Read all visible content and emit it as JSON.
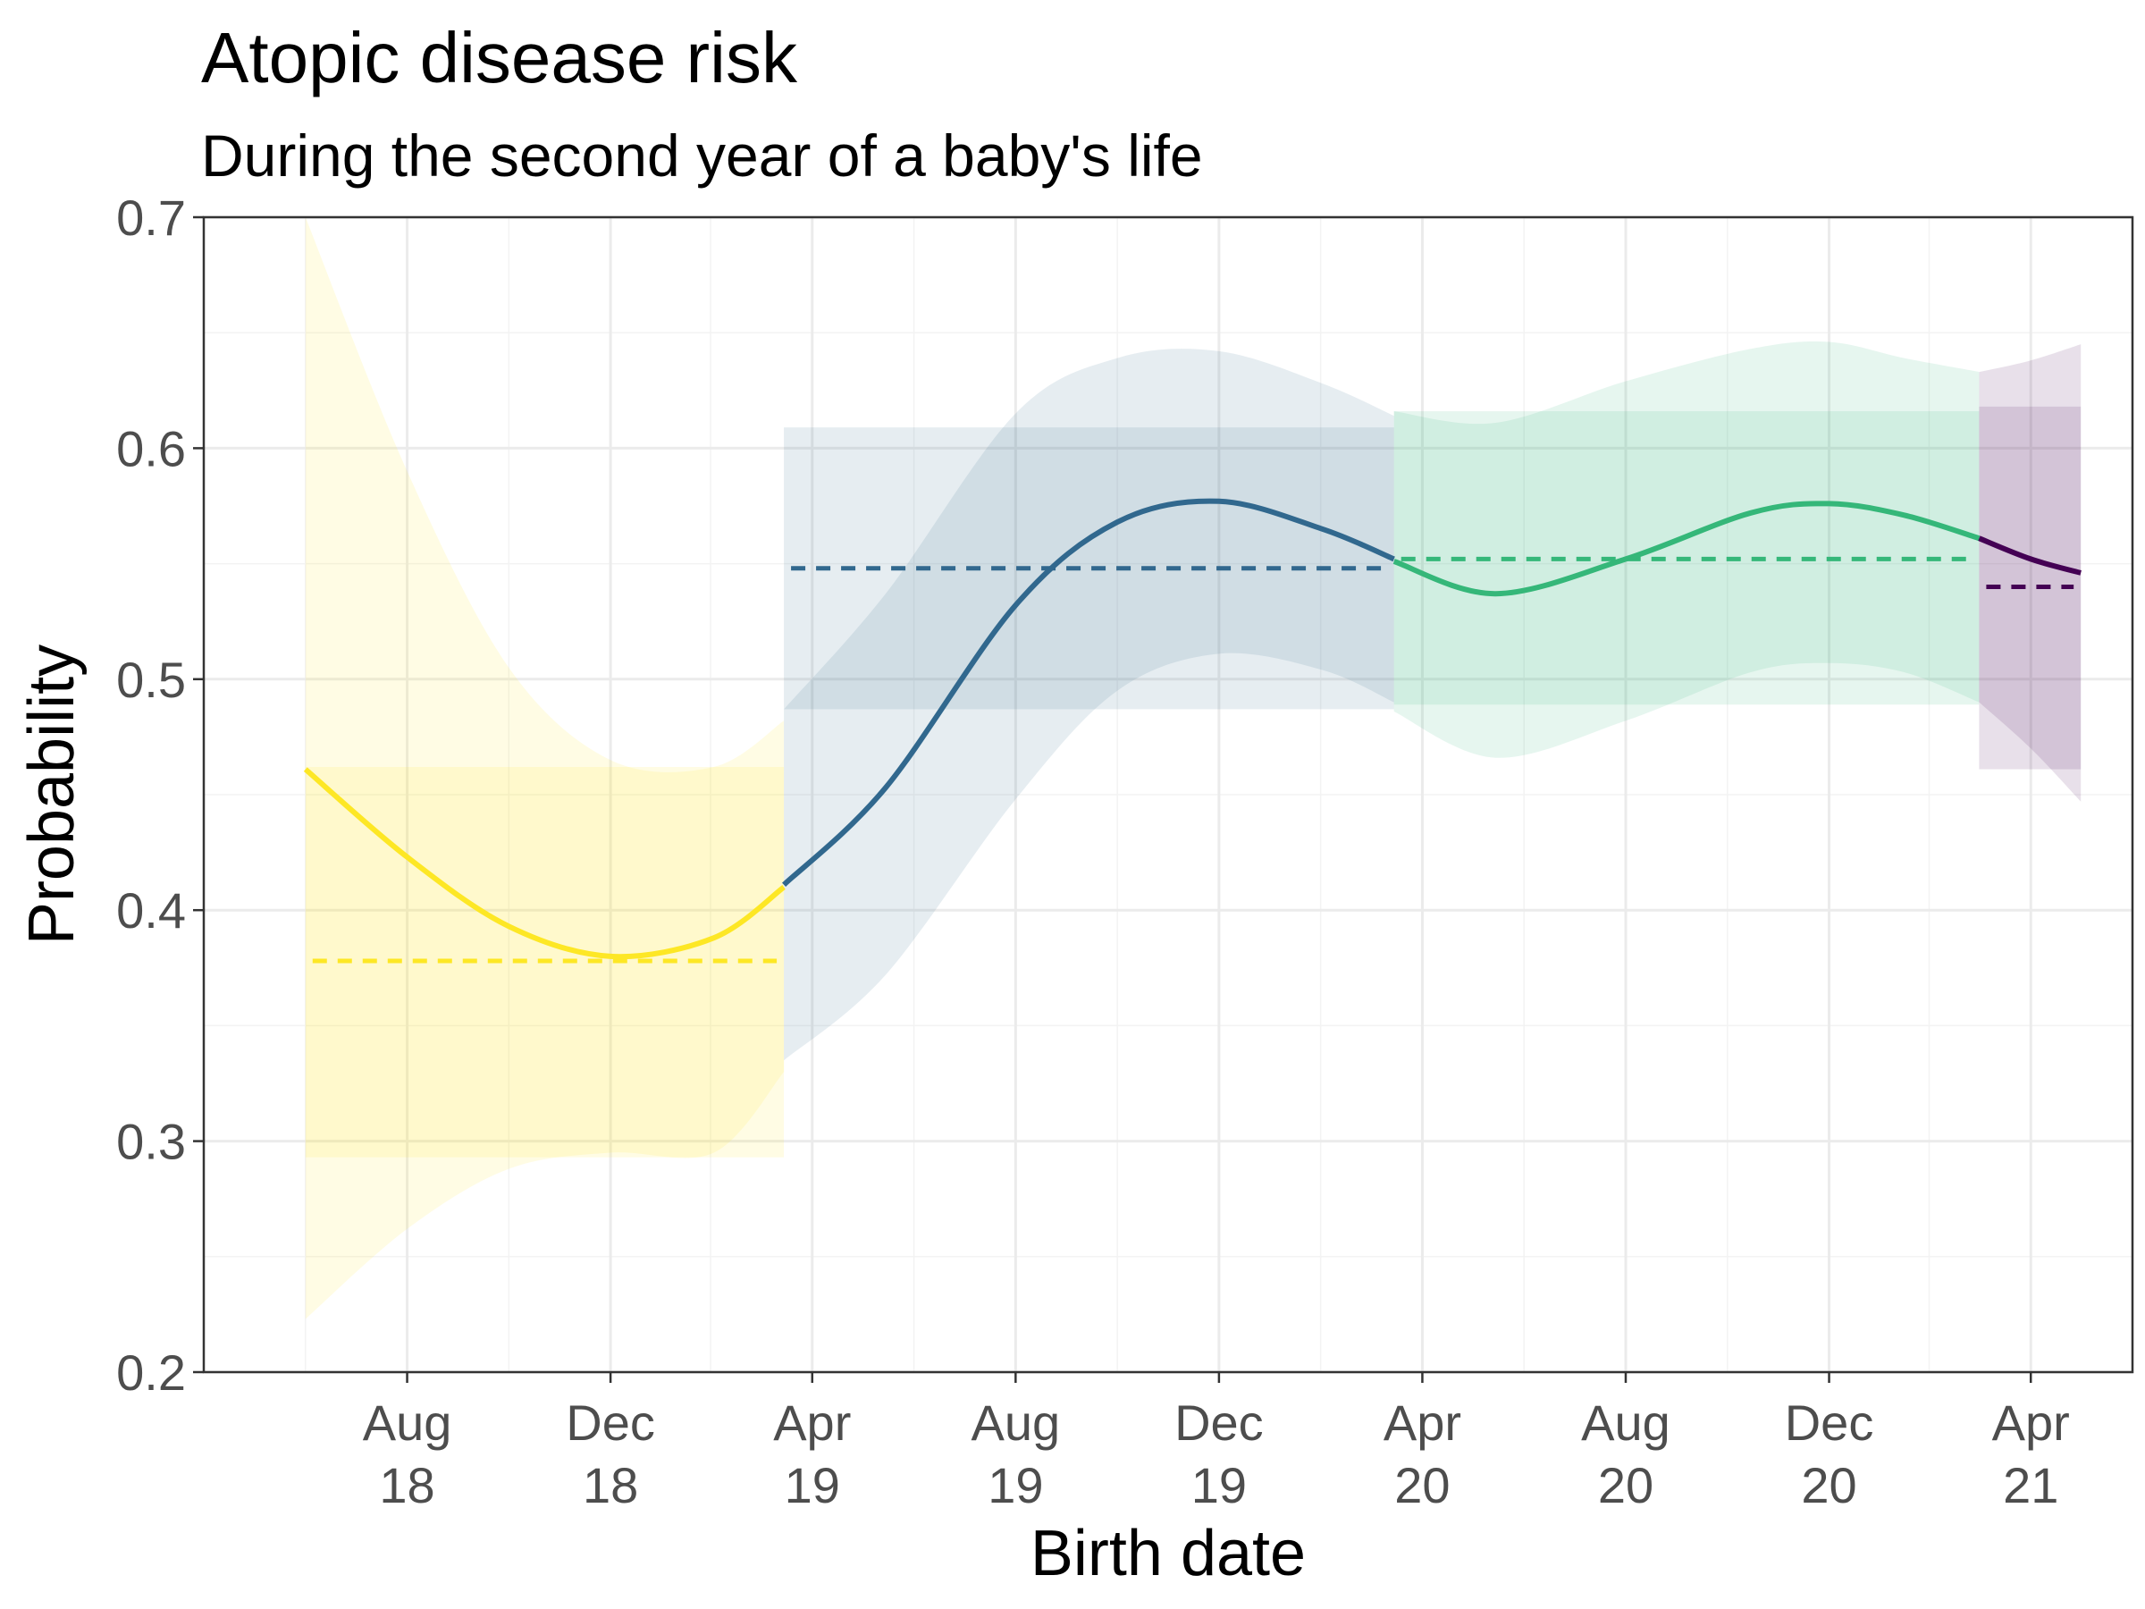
{
  "chart_data": {
    "type": "line",
    "title": "Atopic disease risk",
    "subtitle": "During the second year of a baby's life",
    "xlabel": "Birth date",
    "ylabel": "Probability",
    "ylim": [
      0.2,
      0.7
    ],
    "yticks": [
      0.2,
      0.3,
      0.4,
      0.5,
      0.6,
      0.7
    ],
    "ytick_labels": [
      "0.2",
      "0.3",
      "0.4",
      "0.5",
      "0.6",
      "0.7"
    ],
    "xlim": [
      "2018-04-01",
      "2021-06-01"
    ],
    "xticks": [
      {
        "date": "2018-08-01",
        "line1": "Aug",
        "line2": "18"
      },
      {
        "date": "2018-12-01",
        "line1": "Dec",
        "line2": "18"
      },
      {
        "date": "2019-04-01",
        "line1": "Apr",
        "line2": "19"
      },
      {
        "date": "2019-08-01",
        "line1": "Aug",
        "line2": "19"
      },
      {
        "date": "2019-12-01",
        "line1": "Dec",
        "line2": "19"
      },
      {
        "date": "2020-04-01",
        "line1": "Apr",
        "line2": "20"
      },
      {
        "date": "2020-08-01",
        "line1": "Aug",
        "line2": "20"
      },
      {
        "date": "2020-12-01",
        "line1": "Dec",
        "line2": "20"
      },
      {
        "date": "2021-04-01",
        "line1": "Apr",
        "line2": "21"
      }
    ],
    "grid": true,
    "legend": "none",
    "series": [
      {
        "color": "#fde725",
        "start": "2018-06-01",
        "end": "2019-03-15",
        "mean": 0.378,
        "mean_ci": [
          0.293,
          0.462
        ],
        "smooth": [
          {
            "x": "2018-06-01",
            "y": 0.461,
            "lo": 0.223,
            "hi": 0.7
          },
          {
            "x": "2018-08-01",
            "y": 0.423,
            "lo": 0.262,
            "hi": 0.59
          },
          {
            "x": "2018-10-01",
            "y": 0.393,
            "lo": 0.288,
            "hi": 0.505
          },
          {
            "x": "2018-12-01",
            "y": 0.38,
            "lo": 0.295,
            "hi": 0.465
          },
          {
            "x": "2019-02-01",
            "y": 0.388,
            "lo": 0.295,
            "hi": 0.462
          },
          {
            "x": "2019-03-15",
            "y": 0.41,
            "lo": 0.33,
            "hi": 0.482
          }
        ]
      },
      {
        "color": "#31688e",
        "start": "2019-03-15",
        "end": "2020-03-15",
        "mean": 0.548,
        "mean_ci": [
          0.487,
          0.609
        ],
        "smooth": [
          {
            "x": "2019-03-15",
            "y": 0.411,
            "lo": 0.335,
            "hi": 0.487
          },
          {
            "x": "2019-05-15",
            "y": 0.453,
            "lo": 0.372,
            "hi": 0.537
          },
          {
            "x": "2019-08-01",
            "y": 0.532,
            "lo": 0.448,
            "hi": 0.615
          },
          {
            "x": "2019-10-01",
            "y": 0.568,
            "lo": 0.495,
            "hi": 0.639
          },
          {
            "x": "2019-12-01",
            "y": 0.577,
            "lo": 0.511,
            "hi": 0.642
          },
          {
            "x": "2020-02-01",
            "y": 0.565,
            "lo": 0.504,
            "hi": 0.628
          },
          {
            "x": "2020-03-15",
            "y": 0.552,
            "lo": 0.49,
            "hi": 0.614
          }
        ]
      },
      {
        "color": "#35b779",
        "start": "2020-03-15",
        "end": "2021-03-01",
        "mean": 0.552,
        "mean_ci": [
          0.489,
          0.616
        ],
        "smooth": [
          {
            "x": "2020-03-15",
            "y": 0.551,
            "lo": 0.486,
            "hi": 0.616
          },
          {
            "x": "2020-05-15",
            "y": 0.537,
            "lo": 0.466,
            "hi": 0.611
          },
          {
            "x": "2020-08-01",
            "y": 0.552,
            "lo": 0.482,
            "hi": 0.629
          },
          {
            "x": "2020-10-15",
            "y": 0.572,
            "lo": 0.503,
            "hi": 0.643
          },
          {
            "x": "2020-12-01",
            "y": 0.576,
            "lo": 0.507,
            "hi": 0.646
          },
          {
            "x": "2021-01-15",
            "y": 0.571,
            "lo": 0.503,
            "hi": 0.639
          },
          {
            "x": "2021-03-01",
            "y": 0.561,
            "lo": 0.49,
            "hi": 0.633
          }
        ]
      },
      {
        "color": "#440154",
        "start": "2021-03-01",
        "end": "2021-05-01",
        "mean": 0.54,
        "mean_ci": [
          0.461,
          0.618
        ],
        "smooth": [
          {
            "x": "2021-03-01",
            "y": 0.561,
            "lo": 0.49,
            "hi": 0.633
          },
          {
            "x": "2021-04-01",
            "y": 0.552,
            "lo": 0.47,
            "hi": 0.638
          },
          {
            "x": "2021-05-01",
            "y": 0.546,
            "lo": 0.447,
            "hi": 0.645
          }
        ]
      }
    ]
  }
}
